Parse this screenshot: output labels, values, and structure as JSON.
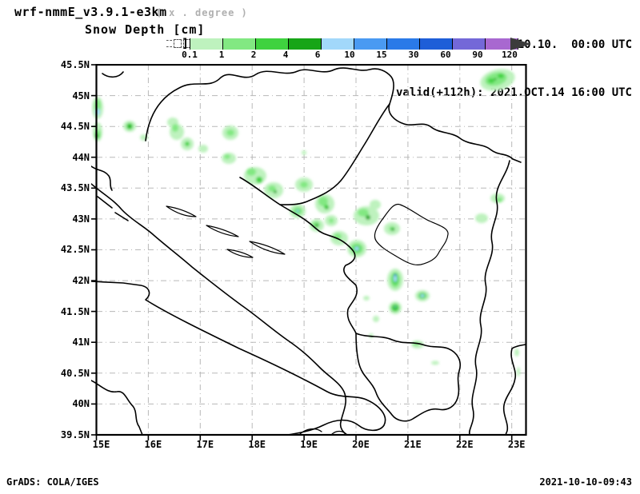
{
  "header": {
    "model_title": "wrf-nmmE_v3.9.1-e3km",
    "model_note": "( x . degree )",
    "plot_title": "Snow Depth [cm]",
    "init_line": "initialisation: 2021.10.10.  00:00 UTC",
    "valid_line": "valid(+112h): 2021.OCT.14 16:00 UTC"
  },
  "legend": {
    "values": [
      "0.1",
      "1",
      "2",
      "4",
      "6",
      "10",
      "15",
      "30",
      "60",
      "90",
      "120"
    ],
    "colors": [
      "#bef2be",
      "#82e882",
      "#3fd23f",
      "#17a517",
      "#a2d8fa",
      "#4a9af2",
      "#2a7ae8",
      "#1e5ed8",
      "#7468d8",
      "#a868d0"
    ],
    "overflow_arrow_color": "#3c3c3c",
    "below_min_marker": "open dashed boxes",
    "bracket": "]"
  },
  "axes": {
    "lat_labels": [
      "45.5N",
      "45N",
      "44.5N",
      "44N",
      "43.5N",
      "43N",
      "42.5N",
      "42N",
      "41.5N",
      "41N",
      "40.5N",
      "40N",
      "39.5N"
    ],
    "lon_labels": [
      "15E",
      "16E",
      "17E",
      "18E",
      "19E",
      "20E",
      "21E",
      "22E",
      "23E"
    ]
  },
  "footer": {
    "left": "GrADS: COLA/IGES",
    "right": "2021-10-10-09:43"
  },
  "chart_data": {
    "type": "heatmap",
    "subtype": "filled-contour weather map",
    "title": "Snow Depth [cm]",
    "model": "wrf-nmmE_v3.9.1-e3km",
    "initialisation": "2021.10.10. 00:00 UTC",
    "valid": "valid(+112h): 2021.OCT.14 16:00 UTC",
    "units": "cm",
    "lon_range": [
      15,
      23.3
    ],
    "lat_range": [
      39.5,
      45.5
    ],
    "grid": "dashed gray gridlines, 1 deg lon x 0.5 deg lat",
    "legend_position": "top, horizontal color bar",
    "contour_levels": [
      0.1,
      1,
      2,
      4,
      6,
      10,
      15,
      30,
      60,
      90,
      120
    ],
    "level_colors": [
      "#bef2be",
      "#82e882",
      "#3fd23f",
      "#17a517",
      "#a2d8fa",
      "#4a9af2",
      "#2a7ae8",
      "#1e5ed8",
      "#7468d8",
      "#a868d0"
    ],
    "snow_maxima": [
      {
        "lon": 15.0,
        "lat": 44.75,
        "depth_cm": 8
      },
      {
        "lon": 15.05,
        "lat": 44.4,
        "depth_cm": 4
      },
      {
        "lon": 15.65,
        "lat": 44.5,
        "depth_cm": 5
      },
      {
        "lon": 15.9,
        "lat": 44.35,
        "depth_cm": 1
      },
      {
        "lon": 16.45,
        "lat": 44.5,
        "depth_cm": 2
      },
      {
        "lon": 16.6,
        "lat": 44.25,
        "depth_cm": 2
      },
      {
        "lon": 17.6,
        "lat": 44.4,
        "depth_cm": 2
      },
      {
        "lon": 17.5,
        "lat": 44.0,
        "depth_cm": 1
      },
      {
        "lon": 18.1,
        "lat": 43.65,
        "depth_cm": 4
      },
      {
        "lon": 18.4,
        "lat": 43.5,
        "depth_cm": 5
      },
      {
        "lon": 19.0,
        "lat": 43.55,
        "depth_cm": 2
      },
      {
        "lon": 18.95,
        "lat": 43.1,
        "depth_cm": 8
      },
      {
        "lon": 19.45,
        "lat": 43.2,
        "depth_cm": 5
      },
      {
        "lon": 20.25,
        "lat": 43.05,
        "depth_cm": 5
      },
      {
        "lon": 20.8,
        "lat": 42.85,
        "depth_cm": 5
      },
      {
        "lon": 20.0,
        "lat": 42.5,
        "depth_cm": 9
      },
      {
        "lon": 20.7,
        "lat": 41.95,
        "depth_cm": 12
      },
      {
        "lon": 21.3,
        "lat": 41.75,
        "depth_cm": 8
      },
      {
        "lon": 20.75,
        "lat": 41.55,
        "depth_cm": 6
      },
      {
        "lon": 22.7,
        "lat": 45.3,
        "depth_cm": 5
      },
      {
        "lon": 22.8,
        "lat": 43.4,
        "depth_cm": 3
      },
      {
        "lon": 22.4,
        "lat": 43.0,
        "depth_cm": 1
      },
      {
        "lon": 21.2,
        "lat": 40.95,
        "depth_cm": 2
      },
      {
        "lon": 23.1,
        "lat": 40.7,
        "depth_cm": 1
      }
    ]
  }
}
